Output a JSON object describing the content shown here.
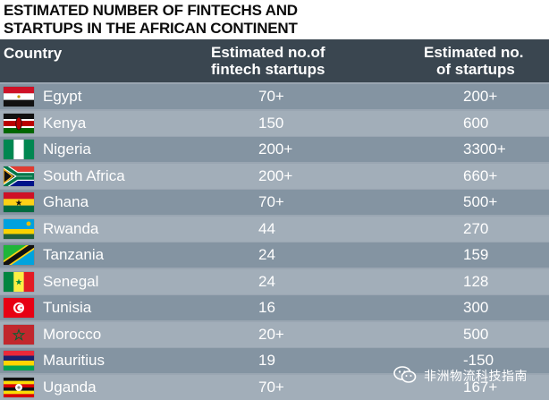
{
  "title": {
    "line1": "ESTIMATED NUMBER OF FINTECHS AND",
    "line2": "STARTUPS IN THE AFRICAN CONTINENT"
  },
  "header": {
    "country": "Country",
    "fintech_line1": "Estimated no.of",
    "fintech_line2": "fintech startups",
    "startups_line1": "Estimated no.",
    "startups_line2": "of startups"
  },
  "chart_data": {
    "type": "table",
    "title": "ESTIMATED NUMBER OF FINTECHS AND STARTUPS IN THE AFRICAN CONTINENT",
    "columns": [
      "Country",
      "Estimated no.of fintech startups",
      "Estimated no. of startups"
    ],
    "rows": [
      {
        "country": "Egypt",
        "fintech": "70+",
        "startups": "200+",
        "flag": "egypt"
      },
      {
        "country": "Kenya",
        "fintech": "150",
        "startups": "600",
        "flag": "kenya"
      },
      {
        "country": "Nigeria",
        "fintech": "200+",
        "startups": "3300+",
        "flag": "nigeria"
      },
      {
        "country": "South Africa",
        "fintech": "200+",
        "startups": "660+",
        "flag": "south-africa"
      },
      {
        "country": "Ghana",
        "fintech": "70+",
        "startups": "500+",
        "flag": "ghana"
      },
      {
        "country": "Rwanda",
        "fintech": "44",
        "startups": "270",
        "flag": "rwanda"
      },
      {
        "country": "Tanzania",
        "fintech": "24",
        "startups": "159",
        "flag": "tanzania"
      },
      {
        "country": "Senegal",
        "fintech": "24",
        "startups": "128",
        "flag": "senegal"
      },
      {
        "country": "Tunisia",
        "fintech": "16",
        "startups": "300",
        "flag": "tunisia"
      },
      {
        "country": "Morocco",
        "fintech": "20+",
        "startups": "500",
        "flag": "morocco"
      },
      {
        "country": "Mauritius",
        "fintech": "19",
        "startups": "-150",
        "flag": "mauritius"
      },
      {
        "country": "Uganda",
        "fintech": "70+",
        "startups": "167+",
        "flag": "uganda"
      }
    ]
  },
  "watermark": {
    "text": "非洲物流科技指南",
    "icon": "wechat-icon"
  },
  "colors": {
    "header_bg": "#3a4650",
    "row_alt": "#8494a2",
    "row_base": "#a2aeb9"
  }
}
